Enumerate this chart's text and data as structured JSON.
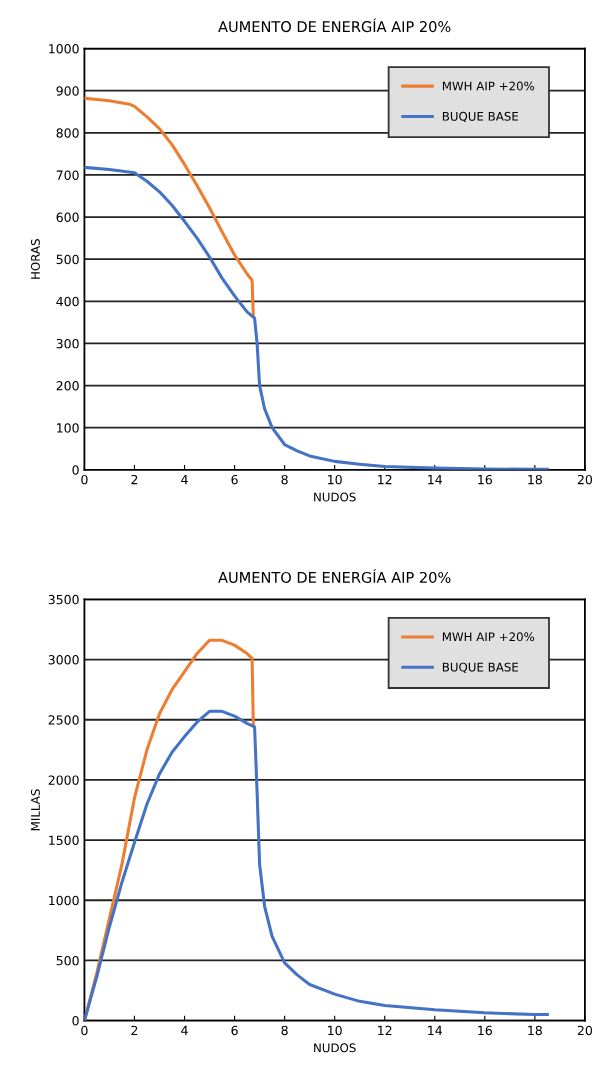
{
  "chart_data": [
    {
      "type": "line",
      "title": "AUMENTO DE ENERGÍA AIP 20%",
      "xlabel": "NUDOS",
      "ylabel": "HORAS",
      "xlim": [
        0,
        20
      ],
      "xticks": [
        0,
        2,
        4,
        6,
        8,
        10,
        12,
        14,
        16,
        18,
        20
      ],
      "ylim": [
        0,
        1000
      ],
      "yticks": [
        0,
        100,
        200,
        300,
        400,
        500,
        600,
        700,
        800,
        900,
        1000
      ],
      "grid": "y",
      "legend": "top right",
      "marker": "none",
      "line_style": "solid",
      "series": [
        {
          "name": "MWH AIP +20%",
          "color": "#ed7d31",
          "x": [
            0,
            1,
            1.8,
            2,
            2.5,
            3,
            3.5,
            4,
            4.5,
            5,
            5.5,
            6,
            6.5,
            6.7,
            6.75
          ],
          "values": [
            882,
            876,
            868,
            863,
            838,
            810,
            772,
            725,
            675,
            622,
            565,
            510,
            465,
            450,
            365
          ]
        },
        {
          "name": "BUQUE BASE",
          "color": "#4472c4",
          "x": [
            0,
            1,
            2,
            2.5,
            3,
            3.5,
            4,
            4.5,
            5,
            5.5,
            6,
            6.5,
            6.8,
            6.9,
            7,
            7.2,
            7.5,
            8,
            8.5,
            9,
            10,
            11,
            12,
            14,
            16,
            18,
            18.5
          ],
          "values": [
            718,
            713,
            705,
            685,
            660,
            628,
            590,
            550,
            505,
            455,
            413,
            375,
            360,
            300,
            200,
            145,
            100,
            60,
            45,
            33,
            20,
            13,
            8,
            4,
            2,
            1,
            1
          ]
        }
      ]
    },
    {
      "type": "line",
      "title": "AUMENTO DE ENERGÍA AIP 20%",
      "xlabel": "NUDOS",
      "ylabel": "MILLAS",
      "xlim": [
        0,
        20
      ],
      "xticks": [
        0,
        2,
        4,
        6,
        8,
        10,
        12,
        14,
        16,
        18,
        20
      ],
      "ylim": [
        0,
        3500
      ],
      "yticks": [
        0,
        500,
        1000,
        1500,
        2000,
        2500,
        3000,
        3500
      ],
      "grid": "y",
      "legend": "top right",
      "marker": "none",
      "line_style": "solid",
      "series": [
        {
          "name": "MWH AIP +20%",
          "color": "#ed7d31",
          "x": [
            0,
            0.5,
            1,
            1.5,
            2,
            2.5,
            3,
            3.5,
            4,
            4.5,
            5,
            5.5,
            6,
            6.5,
            6.7,
            6.75
          ],
          "values": [
            0,
            400,
            850,
            1300,
            1850,
            2250,
            2550,
            2750,
            2900,
            3050,
            3160,
            3160,
            3120,
            3050,
            3010,
            2450
          ]
        },
        {
          "name": "BUQUE BASE",
          "color": "#4472c4",
          "x": [
            0,
            0.5,
            1,
            1.5,
            2,
            2.5,
            3,
            3.5,
            4,
            4.5,
            5,
            5.5,
            6,
            6.5,
            6.8,
            6.9,
            7,
            7.2,
            7.5,
            8,
            8.5,
            9,
            10,
            11,
            12,
            14,
            16,
            18,
            18.5
          ],
          "values": [
            0,
            370,
            780,
            1150,
            1480,
            1800,
            2050,
            2230,
            2360,
            2480,
            2570,
            2570,
            2530,
            2470,
            2440,
            1900,
            1300,
            950,
            700,
            480,
            380,
            300,
            220,
            160,
            125,
            90,
            65,
            50,
            50
          ]
        }
      ]
    }
  ]
}
